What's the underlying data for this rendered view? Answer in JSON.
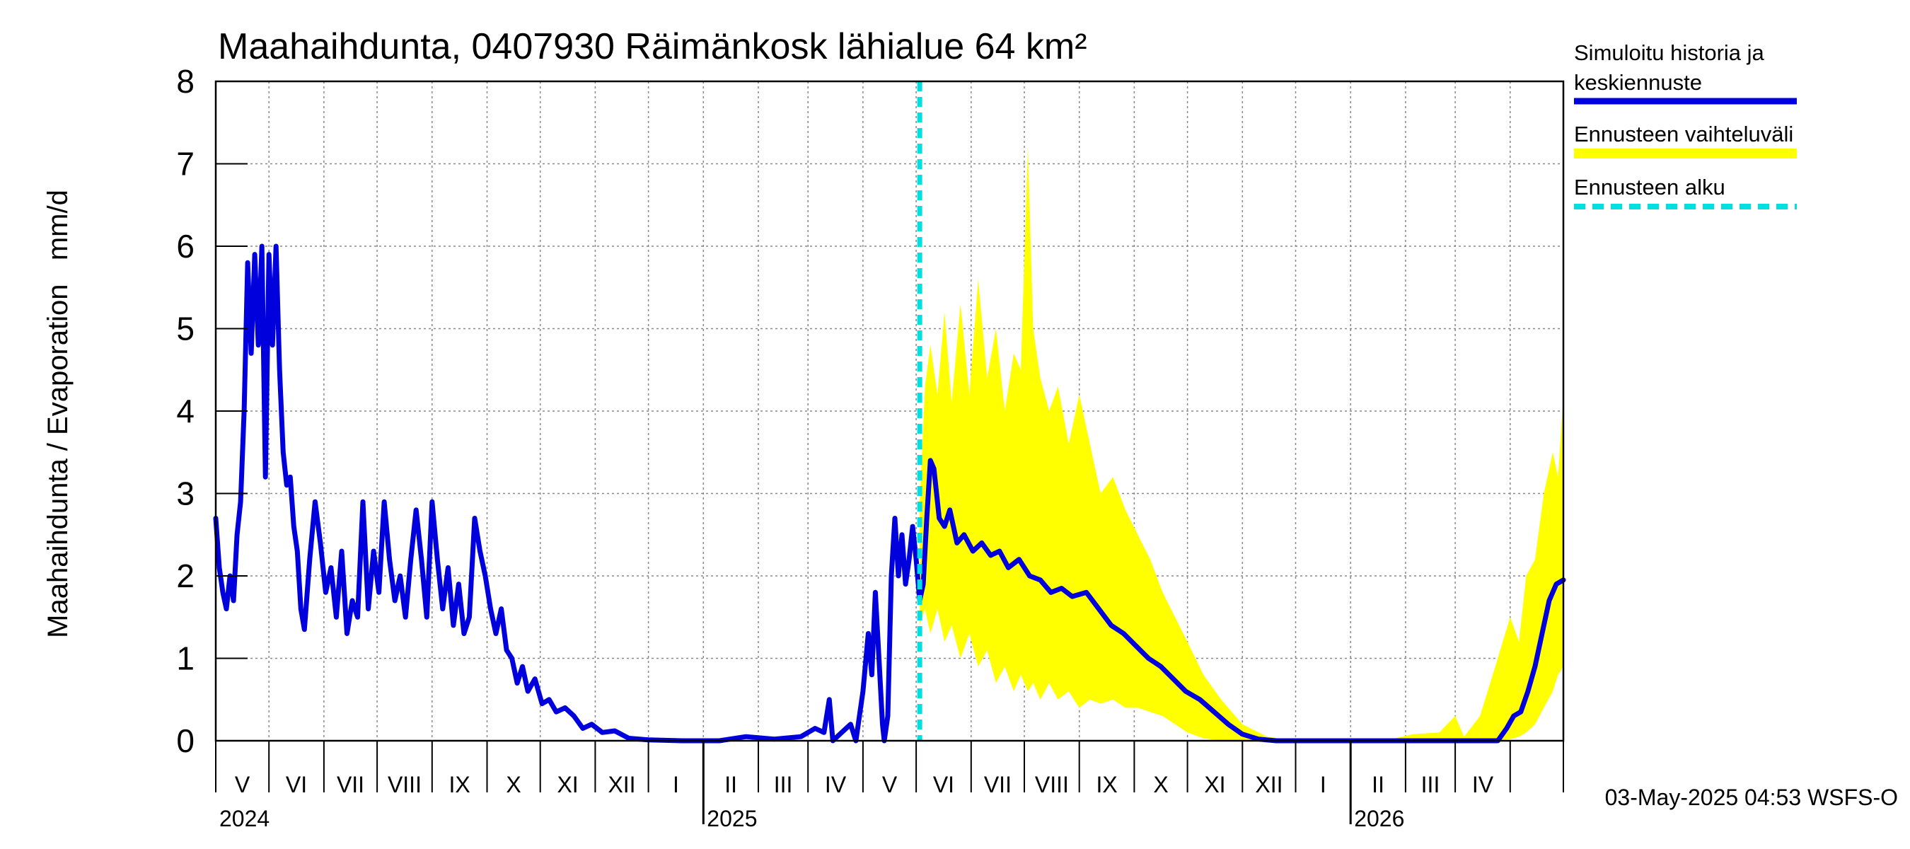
{
  "chart_data": {
    "type": "line",
    "title": "Maahaihdunta, 0407930 Räimänkosk lähialue 64 km²",
    "ylabel": "Maahaihdunta / Evaporation   mm/d",
    "ylim": [
      0,
      8
    ],
    "yticks": [
      "0",
      "1",
      "2",
      "3",
      "4",
      "5",
      "6",
      "7",
      "8"
    ],
    "xlim": [
      "2024-04-01",
      "2026-05-01"
    ],
    "months": [
      "V",
      "VI",
      "VII",
      "VIII",
      "IX",
      "X",
      "XI",
      "XII",
      "I",
      "II",
      "III",
      "IV",
      "V",
      "VI",
      "VII",
      "VIII",
      "IX",
      "X",
      "XI",
      "XII",
      "I",
      "II",
      "III",
      "IV"
    ],
    "years": [
      "2024",
      "2025",
      "2026"
    ],
    "forecast_start": "2025-05-03",
    "legend": {
      "position": "right",
      "items": [
        {
          "label_line1": "Simuloitu historia ja",
          "label_line2": "keskiennuste",
          "color": "#0000dd",
          "style": "solid"
        },
        {
          "label_line1": "Ennusteen vaihteluväli",
          "label_line2": "",
          "color": "#ffff00",
          "style": "band"
        },
        {
          "label_line1": "Ennusteen alku",
          "label_line2": "",
          "color": "#00e0e0",
          "style": "dashed"
        }
      ]
    },
    "footer": "03-May-2025 04:53 WSFS-O",
    "series": [
      {
        "name": "Simuloitu historia ja keskiennuste",
        "color": "#0000dd",
        "points": [
          [
            "2024-04-01",
            2.7
          ],
          [
            "2024-04-03",
            2.1
          ],
          [
            "2024-04-05",
            1.8
          ],
          [
            "2024-04-07",
            1.6
          ],
          [
            "2024-04-09",
            2.0
          ],
          [
            "2024-04-11",
            1.7
          ],
          [
            "2024-04-13",
            2.5
          ],
          [
            "2024-04-15",
            2.9
          ],
          [
            "2024-04-17",
            4.0
          ],
          [
            "2024-04-19",
            5.8
          ],
          [
            "2024-04-21",
            4.7
          ],
          [
            "2024-04-23",
            5.9
          ],
          [
            "2024-04-25",
            4.8
          ],
          [
            "2024-04-27",
            6.0
          ],
          [
            "2024-04-29",
            3.2
          ],
          [
            "2024-05-01",
            5.9
          ],
          [
            "2024-05-03",
            4.8
          ],
          [
            "2024-05-05",
            6.0
          ],
          [
            "2024-05-07",
            4.5
          ],
          [
            "2024-05-09",
            3.5
          ],
          [
            "2024-05-11",
            3.1
          ],
          [
            "2024-05-13",
            3.2
          ],
          [
            "2024-05-15",
            2.6
          ],
          [
            "2024-05-17",
            2.3
          ],
          [
            "2024-05-19",
            1.6
          ],
          [
            "2024-05-21",
            1.35
          ],
          [
            "2024-05-24",
            2.2
          ],
          [
            "2024-05-27",
            2.9
          ],
          [
            "2024-05-30",
            2.4
          ],
          [
            "2024-06-02",
            1.8
          ],
          [
            "2024-06-05",
            2.1
          ],
          [
            "2024-06-08",
            1.5
          ],
          [
            "2024-06-11",
            2.3
          ],
          [
            "2024-06-14",
            1.3
          ],
          [
            "2024-06-17",
            1.7
          ],
          [
            "2024-06-20",
            1.5
          ],
          [
            "2024-06-23",
            2.9
          ],
          [
            "2024-06-26",
            1.6
          ],
          [
            "2024-06-29",
            2.3
          ],
          [
            "2024-07-02",
            1.8
          ],
          [
            "2024-07-05",
            2.9
          ],
          [
            "2024-07-08",
            2.2
          ],
          [
            "2024-07-11",
            1.7
          ],
          [
            "2024-07-14",
            2.0
          ],
          [
            "2024-07-17",
            1.5
          ],
          [
            "2024-07-20",
            2.2
          ],
          [
            "2024-07-23",
            2.8
          ],
          [
            "2024-07-26",
            2.2
          ],
          [
            "2024-07-29",
            1.5
          ],
          [
            "2024-08-01",
            2.9
          ],
          [
            "2024-08-04",
            2.2
          ],
          [
            "2024-08-07",
            1.6
          ],
          [
            "2024-08-10",
            2.1
          ],
          [
            "2024-08-13",
            1.4
          ],
          [
            "2024-08-16",
            1.9
          ],
          [
            "2024-08-19",
            1.3
          ],
          [
            "2024-08-22",
            1.5
          ],
          [
            "2024-08-25",
            2.7
          ],
          [
            "2024-08-28",
            2.3
          ],
          [
            "2024-08-31",
            2.0
          ],
          [
            "2024-09-03",
            1.6
          ],
          [
            "2024-09-06",
            1.3
          ],
          [
            "2024-09-09",
            1.6
          ],
          [
            "2024-09-12",
            1.1
          ],
          [
            "2024-09-15",
            1.0
          ],
          [
            "2024-09-18",
            0.7
          ],
          [
            "2024-09-21",
            0.9
          ],
          [
            "2024-09-24",
            0.6
          ],
          [
            "2024-09-28",
            0.75
          ],
          [
            "2024-10-02",
            0.45
          ],
          [
            "2024-10-06",
            0.5
          ],
          [
            "2024-10-10",
            0.35
          ],
          [
            "2024-10-15",
            0.4
          ],
          [
            "2024-10-20",
            0.3
          ],
          [
            "2024-10-25",
            0.15
          ],
          [
            "2024-10-30",
            0.2
          ],
          [
            "2024-11-05",
            0.1
          ],
          [
            "2024-11-12",
            0.12
          ],
          [
            "2024-11-20",
            0.03
          ],
          [
            "2024-12-01",
            0.01
          ],
          [
            "2024-12-20",
            0.0
          ],
          [
            "2025-01-10",
            0.0
          ],
          [
            "2025-01-25",
            0.05
          ],
          [
            "2025-02-10",
            0.02
          ],
          [
            "2025-02-25",
            0.05
          ],
          [
            "2025-03-05",
            0.15
          ],
          [
            "2025-03-10",
            0.1
          ],
          [
            "2025-03-13",
            0.5
          ],
          [
            "2025-03-15",
            0.0
          ],
          [
            "2025-03-20",
            0.1
          ],
          [
            "2025-03-25",
            0.2
          ],
          [
            "2025-03-28",
            0.0
          ],
          [
            "2025-04-01",
            0.6
          ],
          [
            "2025-04-04",
            1.3
          ],
          [
            "2025-04-06",
            0.8
          ],
          [
            "2025-04-08",
            1.8
          ],
          [
            "2025-04-10",
            1.0
          ],
          [
            "2025-04-12",
            0.2
          ],
          [
            "2025-04-13",
            0.0
          ],
          [
            "2025-04-15",
            0.3
          ],
          [
            "2025-04-17",
            2.0
          ],
          [
            "2025-04-19",
            2.7
          ],
          [
            "2025-04-21",
            2.0
          ],
          [
            "2025-04-23",
            2.5
          ],
          [
            "2025-04-25",
            1.9
          ],
          [
            "2025-04-27",
            2.2
          ],
          [
            "2025-04-29",
            2.6
          ],
          [
            "2025-05-01",
            2.2
          ],
          [
            "2025-05-03",
            1.7
          ],
          [
            "2025-05-05",
            1.9
          ],
          [
            "2025-05-07",
            2.7
          ],
          [
            "2025-05-09",
            3.4
          ],
          [
            "2025-05-11",
            3.3
          ],
          [
            "2025-05-14",
            2.7
          ],
          [
            "2025-05-17",
            2.6
          ],
          [
            "2025-05-20",
            2.8
          ],
          [
            "2025-05-24",
            2.4
          ],
          [
            "2025-05-28",
            2.5
          ],
          [
            "2025-06-02",
            2.3
          ],
          [
            "2025-06-07",
            2.4
          ],
          [
            "2025-06-12",
            2.25
          ],
          [
            "2025-06-17",
            2.3
          ],
          [
            "2025-06-22",
            2.1
          ],
          [
            "2025-06-28",
            2.2
          ],
          [
            "2025-07-04",
            2.0
          ],
          [
            "2025-07-10",
            1.95
          ],
          [
            "2025-07-16",
            1.8
          ],
          [
            "2025-07-22",
            1.85
          ],
          [
            "2025-07-28",
            1.75
          ],
          [
            "2025-08-05",
            1.8
          ],
          [
            "2025-08-12",
            1.6
          ],
          [
            "2025-08-19",
            1.4
          ],
          [
            "2025-08-26",
            1.3
          ],
          [
            "2025-09-02",
            1.15
          ],
          [
            "2025-09-09",
            1.0
          ],
          [
            "2025-09-16",
            0.9
          ],
          [
            "2025-09-23",
            0.75
          ],
          [
            "2025-09-30",
            0.6
          ],
          [
            "2025-10-08",
            0.5
          ],
          [
            "2025-10-16",
            0.35
          ],
          [
            "2025-10-24",
            0.2
          ],
          [
            "2025-11-01",
            0.08
          ],
          [
            "2025-11-10",
            0.02
          ],
          [
            "2025-11-20",
            0.0
          ],
          [
            "2025-12-15",
            0.0
          ],
          [
            "2026-01-15",
            0.0
          ],
          [
            "2026-02-15",
            0.0
          ],
          [
            "2026-03-10",
            0.0
          ],
          [
            "2026-03-25",
            0.0
          ],
          [
            "2026-03-30",
            0.15
          ],
          [
            "2026-04-03",
            0.3
          ],
          [
            "2026-04-07",
            0.35
          ],
          [
            "2026-04-11",
            0.6
          ],
          [
            "2026-04-15",
            0.9
          ],
          [
            "2026-04-19",
            1.3
          ],
          [
            "2026-04-23",
            1.7
          ],
          [
            "2026-04-27",
            1.9
          ],
          [
            "2026-05-01",
            1.95
          ]
        ]
      }
    ],
    "band": {
      "name": "Ennusteen vaihteluväli",
      "color": "#ffff00",
      "points": [
        [
          "2025-05-03",
          1.4,
          2.9
        ],
        [
          "2025-05-06",
          1.6,
          4.3
        ],
        [
          "2025-05-09",
          1.3,
          4.8
        ],
        [
          "2025-05-13",
          1.6,
          4.2
        ],
        [
          "2025-05-17",
          1.2,
          5.2
        ],
        [
          "2025-05-21",
          1.4,
          4.1
        ],
        [
          "2025-05-26",
          1.0,
          5.3
        ],
        [
          "2025-05-31",
          1.3,
          4.2
        ],
        [
          "2025-06-05",
          0.9,
          5.6
        ],
        [
          "2025-06-10",
          1.1,
          4.4
        ],
        [
          "2025-06-15",
          0.7,
          5.0
        ],
        [
          "2025-06-20",
          0.9,
          4.0
        ],
        [
          "2025-06-25",
          0.6,
          4.7
        ],
        [
          "2025-06-29",
          0.8,
          4.5
        ],
        [
          "2025-07-03",
          0.6,
          7.2
        ],
        [
          "2025-07-06",
          0.7,
          5.0
        ],
        [
          "2025-07-10",
          0.5,
          4.4
        ],
        [
          "2025-07-15",
          0.7,
          4.0
        ],
        [
          "2025-07-20",
          0.5,
          4.3
        ],
        [
          "2025-07-26",
          0.6,
          3.6
        ],
        [
          "2025-08-01",
          0.4,
          4.2
        ],
        [
          "2025-08-07",
          0.5,
          3.6
        ],
        [
          "2025-08-13",
          0.45,
          3.0
        ],
        [
          "2025-08-20",
          0.5,
          3.2
        ],
        [
          "2025-08-27",
          0.4,
          2.8
        ],
        [
          "2025-09-03",
          0.4,
          2.5
        ],
        [
          "2025-09-10",
          0.35,
          2.2
        ],
        [
          "2025-09-17",
          0.3,
          1.8
        ],
        [
          "2025-09-24",
          0.2,
          1.5
        ],
        [
          "2025-10-01",
          0.1,
          1.2
        ],
        [
          "2025-10-10",
          0.03,
          0.8
        ],
        [
          "2025-10-20",
          0.0,
          0.5
        ],
        [
          "2025-11-01",
          0.0,
          0.2
        ],
        [
          "2025-11-15",
          0.0,
          0.05
        ],
        [
          "2025-12-01",
          0.0,
          0.0
        ],
        [
          "2026-01-20",
          0.0,
          0.0
        ],
        [
          "2026-02-05",
          0.0,
          0.08
        ],
        [
          "2026-02-20",
          0.0,
          0.1
        ],
        [
          "2026-03-01",
          0.0,
          0.3
        ],
        [
          "2026-03-06",
          0.0,
          0.05
        ],
        [
          "2026-03-15",
          0.0,
          0.3
        ],
        [
          "2026-03-25",
          0.0,
          1.0
        ],
        [
          "2026-04-01",
          0.02,
          1.5
        ],
        [
          "2026-04-06",
          0.05,
          1.2
        ],
        [
          "2026-04-10",
          0.1,
          2.0
        ],
        [
          "2026-04-15",
          0.2,
          2.2
        ],
        [
          "2026-04-20",
          0.4,
          3.0
        ],
        [
          "2026-04-25",
          0.6,
          3.5
        ],
        [
          "2026-04-28",
          0.8,
          3.2
        ],
        [
          "2026-05-01",
          0.9,
          4.2
        ]
      ]
    }
  }
}
